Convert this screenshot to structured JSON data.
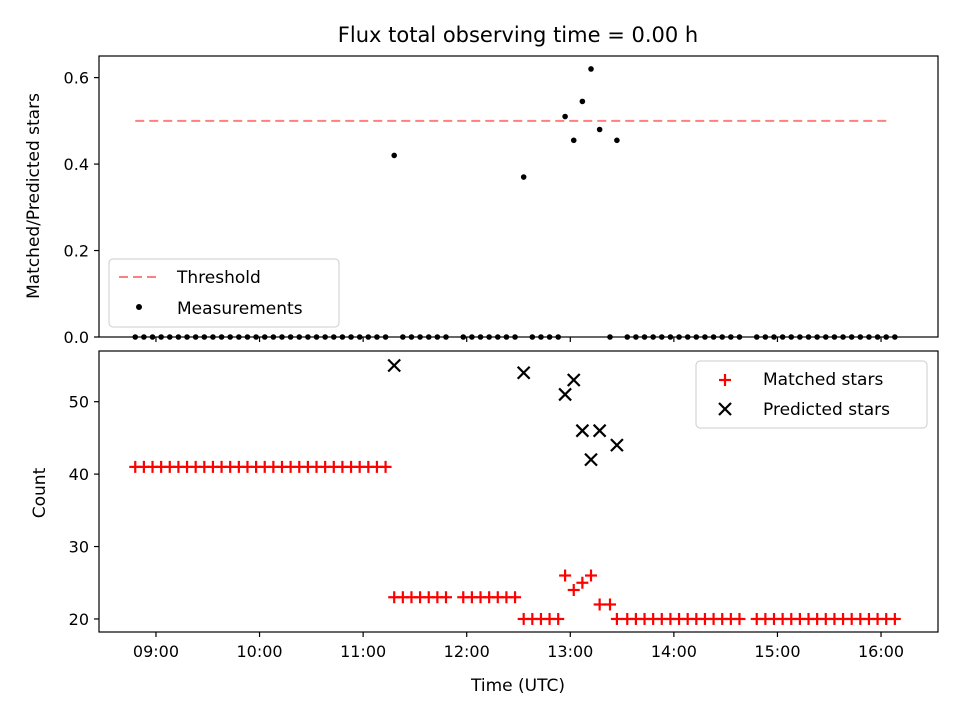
{
  "figure": {
    "title": "Flux total observing time = 0.00 h"
  },
  "chart_data": [
    {
      "type": "scatter",
      "panel": "top",
      "title": "Flux total observing time = 0.00 h",
      "xlabel": "",
      "ylabel": "Matched/Predicted stars",
      "x_unit": "time (UTC)",
      "xlim": [
        "08:27",
        "16:33"
      ],
      "ylim": [
        0,
        0.65
      ],
      "yticks": [
        0.0,
        0.2,
        0.4,
        0.6
      ],
      "ytick_labels": [
        "0.0",
        "0.2",
        "0.4",
        "0.6"
      ],
      "grid": false,
      "legend_position": "lower-left",
      "threshold": {
        "name": "Threshold",
        "value": 0.5,
        "x_range": [
          "08:48",
          "16:05"
        ],
        "color": "#ff7f7f",
        "style": "dashed"
      },
      "series": [
        {
          "name": "Measurements",
          "marker": "dot",
          "color": "#000000",
          "points": [
            [
              "08:48",
              0
            ],
            [
              "08:53",
              0
            ],
            [
              "08:58",
              0
            ],
            [
              "09:03",
              0
            ],
            [
              "09:08",
              0
            ],
            [
              "09:13",
              0
            ],
            [
              "09:18",
              0
            ],
            [
              "09:23",
              0
            ],
            [
              "09:28",
              0
            ],
            [
              "09:33",
              0
            ],
            [
              "09:38",
              0
            ],
            [
              "09:43",
              0
            ],
            [
              "09:48",
              0
            ],
            [
              "09:53",
              0
            ],
            [
              "09:58",
              0
            ],
            [
              "10:03",
              0
            ],
            [
              "10:08",
              0
            ],
            [
              "10:13",
              0
            ],
            [
              "10:18",
              0
            ],
            [
              "10:23",
              0
            ],
            [
              "10:28",
              0
            ],
            [
              "10:33",
              0
            ],
            [
              "10:38",
              0
            ],
            [
              "10:43",
              0
            ],
            [
              "10:48",
              0
            ],
            [
              "10:53",
              0
            ],
            [
              "10:58",
              0
            ],
            [
              "11:03",
              0
            ],
            [
              "11:08",
              0
            ],
            [
              "11:13",
              0
            ],
            [
              "11:18",
              0.42
            ],
            [
              "11:23",
              0
            ],
            [
              "11:28",
              0
            ],
            [
              "11:33",
              0
            ],
            [
              "11:38",
              0
            ],
            [
              "11:43",
              0
            ],
            [
              "11:48",
              0
            ],
            [
              "11:58",
              0
            ],
            [
              "12:03",
              0
            ],
            [
              "12:08",
              0
            ],
            [
              "12:13",
              0
            ],
            [
              "12:18",
              0
            ],
            [
              "12:23",
              0
            ],
            [
              "12:28",
              0
            ],
            [
              "12:33",
              0.37
            ],
            [
              "12:38",
              0
            ],
            [
              "12:43",
              0
            ],
            [
              "12:48",
              0
            ],
            [
              "12:53",
              0
            ],
            [
              "12:57",
              0.51
            ],
            [
              "13:02",
              0.455
            ],
            [
              "13:07",
              0.545
            ],
            [
              "13:12",
              0.62
            ],
            [
              "13:17",
              0.48
            ],
            [
              "13:23",
              0
            ],
            [
              "13:27",
              0.455
            ],
            [
              "13:33",
              0
            ],
            [
              "13:38",
              0
            ],
            [
              "13:43",
              0
            ],
            [
              "13:48",
              0
            ],
            [
              "13:53",
              0
            ],
            [
              "13:58",
              0
            ],
            [
              "14:03",
              0
            ],
            [
              "14:08",
              0
            ],
            [
              "14:13",
              0
            ],
            [
              "14:18",
              0
            ],
            [
              "14:23",
              0
            ],
            [
              "14:28",
              0
            ],
            [
              "14:33",
              0
            ],
            [
              "14:38",
              0
            ],
            [
              "14:48",
              0
            ],
            [
              "14:53",
              0
            ],
            [
              "14:58",
              0
            ],
            [
              "15:03",
              0
            ],
            [
              "15:08",
              0
            ],
            [
              "15:13",
              0
            ],
            [
              "15:18",
              0
            ],
            [
              "15:23",
              0
            ],
            [
              "15:28",
              0
            ],
            [
              "15:33",
              0
            ],
            [
              "15:38",
              0
            ],
            [
              "15:43",
              0
            ],
            [
              "15:48",
              0
            ],
            [
              "15:53",
              0
            ],
            [
              "15:58",
              0
            ],
            [
              "16:03",
              0
            ],
            [
              "16:08",
              0
            ]
          ]
        }
      ]
    },
    {
      "type": "scatter",
      "panel": "bottom",
      "title": "",
      "xlabel": "Time (UTC)",
      "ylabel": "Count",
      "xlim": [
        "08:27",
        "16:33"
      ],
      "xticks": [
        "09:00",
        "10:00",
        "11:00",
        "12:00",
        "13:00",
        "14:00",
        "15:00",
        "16:00"
      ],
      "ylim": [
        18.2,
        57.0
      ],
      "yticks": [
        20,
        30,
        40,
        50
      ],
      "ytick_labels": [
        "20",
        "30",
        "40",
        "50"
      ],
      "grid": false,
      "legend_position": "top-right",
      "series": [
        {
          "name": "Matched stars",
          "marker": "plus",
          "color": "#ff0000",
          "points": [
            [
              "08:48",
              41
            ],
            [
              "08:53",
              41
            ],
            [
              "08:58",
              41
            ],
            [
              "09:03",
              41
            ],
            [
              "09:08",
              41
            ],
            [
              "09:13",
              41
            ],
            [
              "09:18",
              41
            ],
            [
              "09:23",
              41
            ],
            [
              "09:28",
              41
            ],
            [
              "09:33",
              41
            ],
            [
              "09:38",
              41
            ],
            [
              "09:43",
              41
            ],
            [
              "09:48",
              41
            ],
            [
              "09:53",
              41
            ],
            [
              "09:58",
              41
            ],
            [
              "10:03",
              41
            ],
            [
              "10:08",
              41
            ],
            [
              "10:13",
              41
            ],
            [
              "10:18",
              41
            ],
            [
              "10:23",
              41
            ],
            [
              "10:28",
              41
            ],
            [
              "10:33",
              41
            ],
            [
              "10:38",
              41
            ],
            [
              "10:43",
              41
            ],
            [
              "10:48",
              41
            ],
            [
              "10:53",
              41
            ],
            [
              "10:58",
              41
            ],
            [
              "11:03",
              41
            ],
            [
              "11:08",
              41
            ],
            [
              "11:13",
              41
            ],
            [
              "11:18",
              23
            ],
            [
              "11:23",
              23
            ],
            [
              "11:28",
              23
            ],
            [
              "11:33",
              23
            ],
            [
              "11:38",
              23
            ],
            [
              "11:43",
              23
            ],
            [
              "11:48",
              23
            ],
            [
              "11:58",
              23
            ],
            [
              "12:03",
              23
            ],
            [
              "12:08",
              23
            ],
            [
              "12:13",
              23
            ],
            [
              "12:18",
              23
            ],
            [
              "12:23",
              23
            ],
            [
              "12:28",
              23
            ],
            [
              "12:33",
              20
            ],
            [
              "12:38",
              20
            ],
            [
              "12:43",
              20
            ],
            [
              "12:48",
              20
            ],
            [
              "12:53",
              20
            ],
            [
              "12:57",
              26
            ],
            [
              "13:02",
              24
            ],
            [
              "13:07",
              25
            ],
            [
              "13:12",
              26
            ],
            [
              "13:17",
              22
            ],
            [
              "13:23",
              22
            ],
            [
              "13:27",
              20
            ],
            [
              "13:33",
              20
            ],
            [
              "13:38",
              20
            ],
            [
              "13:43",
              20
            ],
            [
              "13:48",
              20
            ],
            [
              "13:53",
              20
            ],
            [
              "13:58",
              20
            ],
            [
              "14:03",
              20
            ],
            [
              "14:08",
              20
            ],
            [
              "14:13",
              20
            ],
            [
              "14:18",
              20
            ],
            [
              "14:23",
              20
            ],
            [
              "14:28",
              20
            ],
            [
              "14:33",
              20
            ],
            [
              "14:38",
              20
            ],
            [
              "14:48",
              20
            ],
            [
              "14:53",
              20
            ],
            [
              "14:58",
              20
            ],
            [
              "15:03",
              20
            ],
            [
              "15:08",
              20
            ],
            [
              "15:13",
              20
            ],
            [
              "15:18",
              20
            ],
            [
              "15:23",
              20
            ],
            [
              "15:28",
              20
            ],
            [
              "15:33",
              20
            ],
            [
              "15:38",
              20
            ],
            [
              "15:43",
              20
            ],
            [
              "15:48",
              20
            ],
            [
              "15:53",
              20
            ],
            [
              "15:58",
              20
            ],
            [
              "16:03",
              20
            ],
            [
              "16:08",
              20
            ]
          ]
        },
        {
          "name": "Predicted stars",
          "marker": "x",
          "color": "#000000",
          "points": [
            [
              "11:18",
              55
            ],
            [
              "12:33",
              54
            ],
            [
              "12:57",
              51
            ],
            [
              "13:02",
              53
            ],
            [
              "13:07",
              46
            ],
            [
              "13:12",
              42
            ],
            [
              "13:17",
              46
            ],
            [
              "13:27",
              44
            ]
          ]
        }
      ]
    }
  ]
}
